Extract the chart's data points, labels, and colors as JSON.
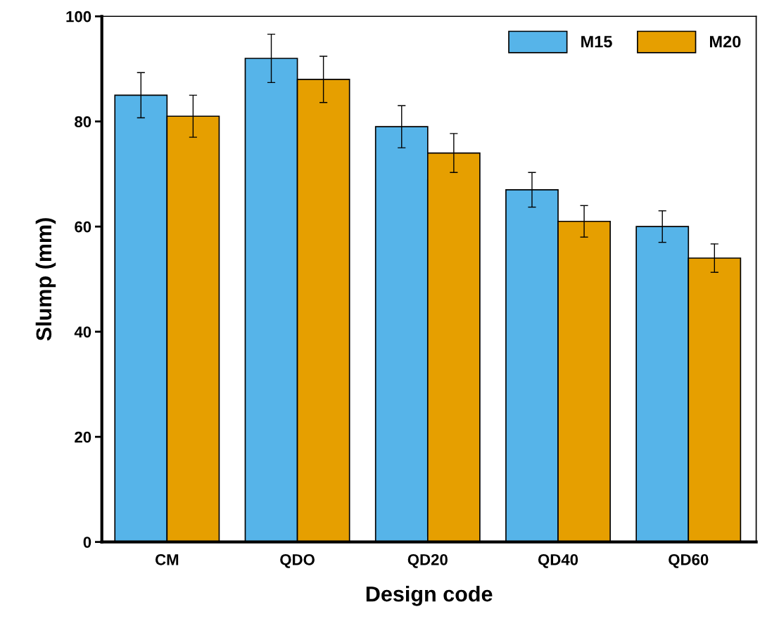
{
  "chart_data": {
    "type": "bar",
    "xlabel": "Design code",
    "ylabel": "Slump (mm)",
    "categories": [
      "CM",
      "QDO",
      "QD20",
      "QD40",
      "QD60"
    ],
    "series": [
      {
        "name": "M15",
        "color": "#56b4e9",
        "values": [
          85,
          92,
          79,
          67,
          60
        ],
        "errors": [
          4.3,
          4.6,
          4,
          3.3,
          3
        ]
      },
      {
        "name": "M20",
        "color": "#e69f00",
        "values": [
          81,
          88,
          74,
          61,
          54
        ],
        "errors": [
          4,
          4.4,
          3.7,
          3,
          2.7
        ]
      }
    ],
    "ylim": [
      0,
      100
    ],
    "yticks": [
      0,
      20,
      40,
      60,
      80,
      100
    ],
    "legend": "top right",
    "grid": false
  }
}
